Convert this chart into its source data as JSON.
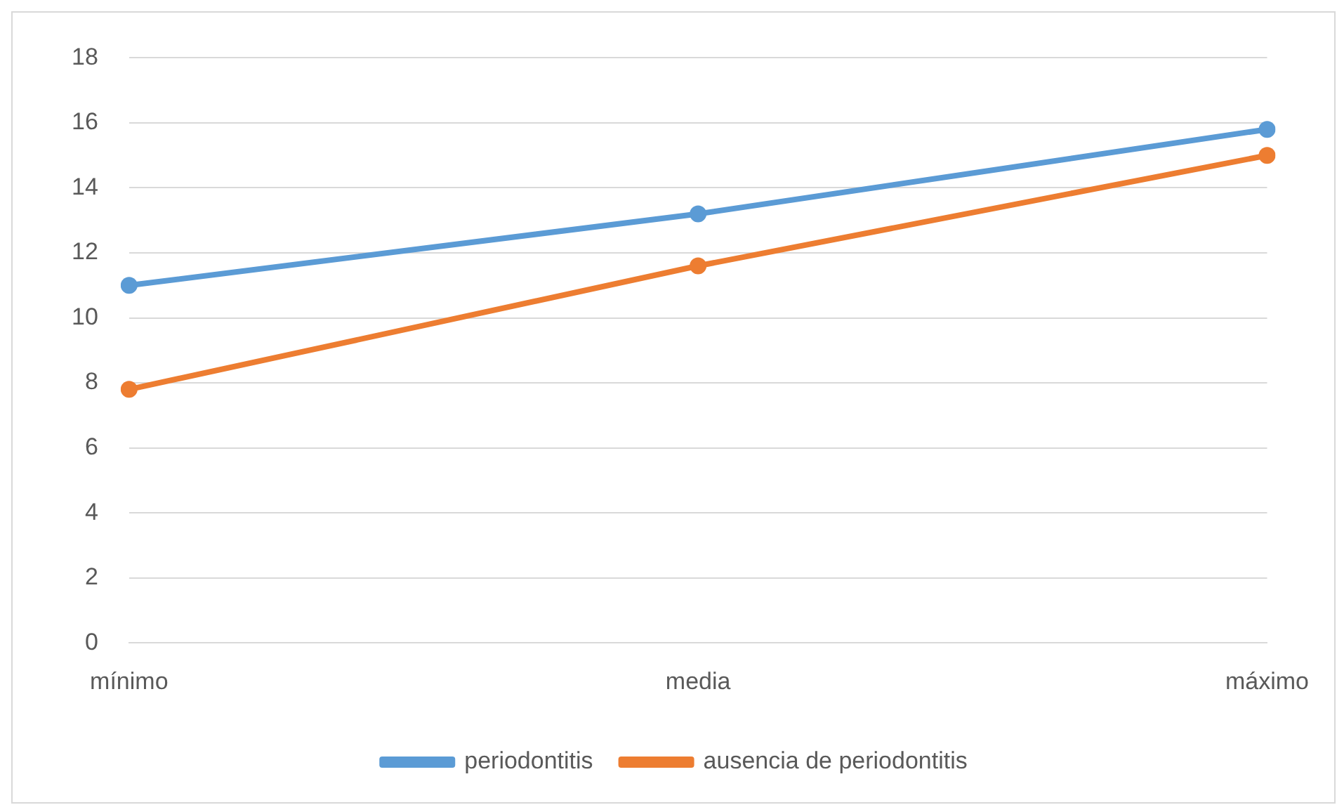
{
  "chart_data": {
    "type": "line",
    "categories": [
      "mínimo",
      "media",
      "máximo"
    ],
    "series": [
      {
        "name": "periodontitis",
        "color": "#5b9bd5",
        "values": [
          11,
          13.2,
          15.8
        ]
      },
      {
        "name": "ausencia de periodontitis",
        "color": "#ed7d31",
        "values": [
          7.8,
          11.6,
          15
        ]
      }
    ],
    "ylim": [
      0,
      18
    ],
    "yticks": [
      0,
      2,
      4,
      6,
      8,
      10,
      12,
      14,
      16,
      18
    ],
    "grid": "y",
    "legend": "bottom",
    "marker": "circle",
    "line_style": "solid"
  }
}
